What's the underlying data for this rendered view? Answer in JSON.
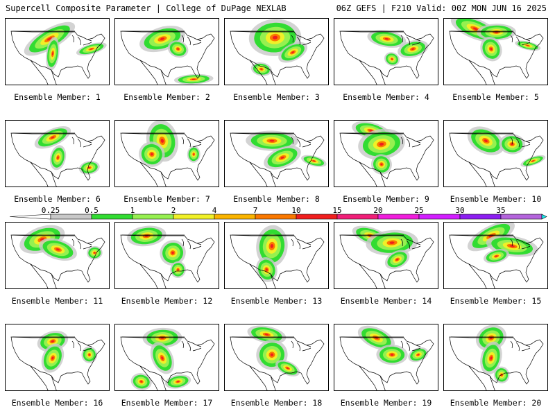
{
  "header": {
    "left": "Supercell Composite Parameter | College of DuPage NEXLAB",
    "right": "06Z GEFS | F210 Valid: 00Z MON JUN 16 2025"
  },
  "member_label_prefix": "Ensemble Member: ",
  "members": [
    {
      "id": "1",
      "blobs": [
        [
          0.42,
          0.3,
          0.22,
          0.12
        ],
        [
          0.45,
          0.52,
          0.05,
          0.2
        ],
        [
          0.82,
          0.45,
          0.12,
          0.06
        ]
      ]
    },
    {
      "id": "2",
      "blobs": [
        [
          0.45,
          0.3,
          0.18,
          0.14
        ],
        [
          0.6,
          0.45,
          0.08,
          0.1
        ],
        [
          0.75,
          0.9,
          0.15,
          0.06
        ]
      ]
    },
    {
      "id": "3",
      "blobs": [
        [
          0.48,
          0.28,
          0.2,
          0.22
        ],
        [
          0.65,
          0.5,
          0.12,
          0.1
        ],
        [
          0.35,
          0.75,
          0.08,
          0.08
        ]
      ]
    },
    {
      "id": "4",
      "blobs": [
        [
          0.5,
          0.3,
          0.15,
          0.1
        ],
        [
          0.75,
          0.45,
          0.12,
          0.1
        ],
        [
          0.55,
          0.6,
          0.06,
          0.08
        ]
      ]
    },
    {
      "id": "5",
      "blobs": [
        [
          0.3,
          0.15,
          0.2,
          0.12
        ],
        [
          0.5,
          0.2,
          0.15,
          0.1
        ],
        [
          0.45,
          0.45,
          0.08,
          0.15
        ],
        [
          0.8,
          0.4,
          0.1,
          0.05
        ]
      ]
    },
    {
      "id": "6",
      "blobs": [
        [
          0.45,
          0.25,
          0.15,
          0.1
        ],
        [
          0.5,
          0.55,
          0.06,
          0.15
        ],
        [
          0.8,
          0.7,
          0.08,
          0.08
        ]
      ]
    },
    {
      "id": "7",
      "blobs": [
        [
          0.45,
          0.3,
          0.12,
          0.25
        ],
        [
          0.35,
          0.5,
          0.1,
          0.15
        ],
        [
          0.75,
          0.5,
          0.05,
          0.1
        ]
      ]
    },
    {
      "id": "8",
      "blobs": [
        [
          0.45,
          0.3,
          0.2,
          0.12
        ],
        [
          0.55,
          0.55,
          0.15,
          0.12
        ],
        [
          0.85,
          0.6,
          0.1,
          0.06
        ]
      ]
    },
    {
      "id": "9",
      "blobs": [
        [
          0.35,
          0.15,
          0.15,
          0.1
        ],
        [
          0.45,
          0.35,
          0.18,
          0.18
        ],
        [
          0.45,
          0.65,
          0.08,
          0.12
        ]
      ]
    },
    {
      "id": "10",
      "blobs": [
        [
          0.4,
          0.3,
          0.15,
          0.15
        ],
        [
          0.65,
          0.35,
          0.1,
          0.12
        ],
        [
          0.85,
          0.6,
          0.1,
          0.05
        ]
      ]
    },
    {
      "id": "11",
      "blobs": [
        [
          0.35,
          0.25,
          0.18,
          0.15
        ],
        [
          0.5,
          0.4,
          0.15,
          0.12
        ],
        [
          0.85,
          0.45,
          0.06,
          0.08
        ]
      ]
    },
    {
      "id": "12",
      "blobs": [
        [
          0.3,
          0.2,
          0.15,
          0.12
        ],
        [
          0.55,
          0.45,
          0.1,
          0.15
        ],
        [
          0.6,
          0.7,
          0.06,
          0.1
        ]
      ]
    },
    {
      "id": "13",
      "blobs": [
        [
          0.45,
          0.35,
          0.12,
          0.25
        ],
        [
          0.4,
          0.7,
          0.08,
          0.15
        ]
      ]
    },
    {
      "id": "14",
      "blobs": [
        [
          0.35,
          0.2,
          0.15,
          0.1
        ],
        [
          0.55,
          0.3,
          0.2,
          0.15
        ],
        [
          0.6,
          0.55,
          0.1,
          0.1
        ]
      ]
    },
    {
      "id": "15",
      "blobs": [
        [
          0.45,
          0.2,
          0.2,
          0.12
        ],
        [
          0.65,
          0.35,
          0.2,
          0.12
        ],
        [
          0.5,
          0.5,
          0.1,
          0.08
        ]
      ]
    },
    {
      "id": "16",
      "blobs": [
        [
          0.45,
          0.25,
          0.12,
          0.12
        ],
        [
          0.45,
          0.5,
          0.08,
          0.18
        ],
        [
          0.8,
          0.45,
          0.06,
          0.1
        ]
      ]
    },
    {
      "id": "17",
      "blobs": [
        [
          0.45,
          0.2,
          0.15,
          0.12
        ],
        [
          0.45,
          0.5,
          0.08,
          0.2
        ],
        [
          0.25,
          0.85,
          0.08,
          0.1
        ],
        [
          0.6,
          0.85,
          0.1,
          0.08
        ]
      ]
    },
    {
      "id": "18",
      "blobs": [
        [
          0.4,
          0.15,
          0.15,
          0.1
        ],
        [
          0.45,
          0.45,
          0.12,
          0.18
        ],
        [
          0.6,
          0.65,
          0.1,
          0.08
        ]
      ]
    },
    {
      "id": "19",
      "blobs": [
        [
          0.4,
          0.2,
          0.15,
          0.12
        ],
        [
          0.55,
          0.45,
          0.12,
          0.12
        ],
        [
          0.8,
          0.45,
          0.08,
          0.08
        ]
      ]
    },
    {
      "id": "20",
      "blobs": [
        [
          0.45,
          0.2,
          0.12,
          0.15
        ],
        [
          0.45,
          0.5,
          0.08,
          0.2
        ],
        [
          0.55,
          0.75,
          0.06,
          0.1
        ]
      ]
    }
  ],
  "colorbar": {
    "labels": [
      "0.25",
      "0.5",
      "1",
      "2",
      "4",
      "7",
      "10",
      "15",
      "20",
      "25",
      "30",
      "35"
    ],
    "colors": [
      "#c8c8c8",
      "#32dc32",
      "#96f050",
      "#f0f028",
      "#fab400",
      "#fa7800",
      "#f01e1e",
      "#f01e78",
      "#f01edc",
      "#d21eff",
      "#8c1ef0",
      "#b464dc",
      "#1ee6f0"
    ]
  },
  "map_colors": {
    "green": "#32dc32",
    "lightgreen": "#96f050",
    "yellow": "#f0f028",
    "orange": "#fa7800",
    "red": "#f01e1e",
    "magenta": "#c8147a",
    "gray": "#c8c8c8"
  }
}
